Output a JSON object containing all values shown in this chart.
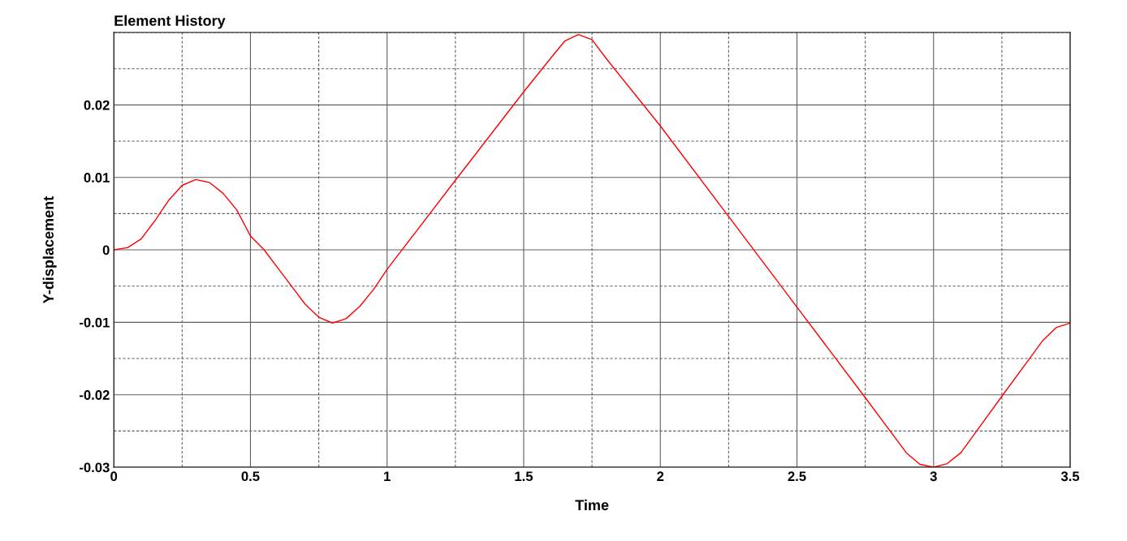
{
  "chart_data": {
    "type": "line",
    "title": "Element History",
    "xlabel": "Time",
    "ylabel": "Y-displacement",
    "x": [
      0,
      0.05,
      0.1,
      0.15,
      0.2,
      0.25,
      0.3,
      0.35,
      0.4,
      0.45,
      0.5,
      0.55,
      0.6,
      0.65,
      0.7,
      0.75,
      0.8,
      0.85,
      0.9,
      0.95,
      1.0,
      1.25,
      1.5,
      1.6,
      1.65,
      1.7,
      1.75,
      1.8,
      2.0,
      2.25,
      2.5,
      2.75,
      2.9,
      2.95,
      3.0,
      3.05,
      3.1,
      3.25,
      3.4,
      3.45,
      3.5
    ],
    "series": [
      {
        "color": "#ff0000",
        "values": [
          0,
          0.0003,
          0.0015,
          0.004,
          0.0068,
          0.0089,
          0.0097,
          0.0093,
          0.0078,
          0.0055,
          0.0019,
          0.0,
          -0.0025,
          -0.005,
          -0.0075,
          -0.0093,
          -0.0101,
          -0.0095,
          -0.0078,
          -0.0055,
          -0.0027,
          0.0096,
          0.0218,
          0.0265,
          0.0288,
          0.0297,
          0.029,
          0.0265,
          0.0171,
          0.0046,
          -0.0079,
          -0.0204,
          -0.028,
          -0.0296,
          -0.03,
          -0.0295,
          -0.028,
          -0.0202,
          -0.0125,
          -0.0107,
          -0.0101
        ]
      }
    ],
    "xlim": [
      0,
      3.5
    ],
    "ylim": [
      -0.03,
      0.03
    ],
    "xticks": [
      0,
      {
        "value": 0.25,
        "label": null
      },
      0.5,
      {
        "value": 0.75,
        "label": null
      },
      1,
      {
        "value": 1.25,
        "label": null
      },
      1.5,
      {
        "value": 1.75,
        "label": null
      },
      2,
      {
        "value": 2.25,
        "label": null
      },
      2.5,
      {
        "value": 2.75,
        "label": null
      },
      3,
      {
        "value": 3.25,
        "label": null
      },
      3.5
    ],
    "yticks": [
      -0.03,
      {
        "value": -0.025,
        "label": null
      },
      -0.02,
      {
        "value": -0.015,
        "label": null
      },
      -0.01,
      {
        "value": -0.005,
        "label": null
      },
      0,
      {
        "value": 0.005,
        "label": null
      },
      0.01,
      {
        "value": 0.015,
        "label": null
      },
      0.02,
      {
        "value": 0.025,
        "label": null
      },
      {
        "value": 0.03,
        "label": null
      }
    ],
    "grid": true,
    "marker": "none",
    "line_style": "solid"
  }
}
